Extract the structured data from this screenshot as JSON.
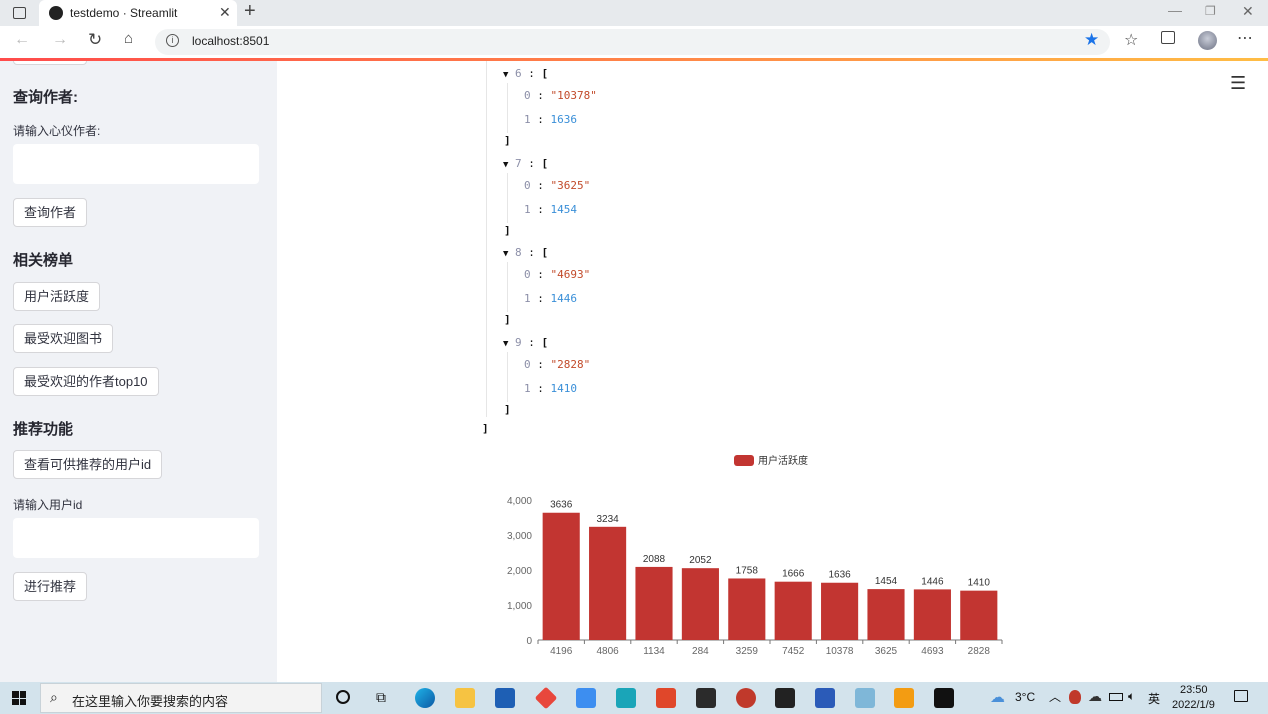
{
  "browser": {
    "tab_title": "testdemo · Streamlit",
    "url": "localhost:8501"
  },
  "sidebar": {
    "author_heading": "查询作者:",
    "author_input_label": "请输入心仪作者:",
    "author_button": "查询作者",
    "ranking_heading": "相关榜单",
    "btn_activity": "用户活跃度",
    "btn_popular_books": "最受欢迎图书",
    "btn_popular_authors": "最受欢迎的作者top10",
    "recommend_heading": "推荐功能",
    "btn_view_ids": "查看可供推荐的用户id",
    "user_id_label": "请输入用户id",
    "btn_recommend": "进行推荐"
  },
  "json_view": {
    "items": [
      {
        "index": "6",
        "id": "\"10378\"",
        "count": "1636"
      },
      {
        "index": "7",
        "id": "\"3625\"",
        "count": "1454"
      },
      {
        "index": "8",
        "id": "\"4693\"",
        "count": "1446"
      },
      {
        "index": "9",
        "id": "\"2828\"",
        "count": "1410"
      }
    ]
  },
  "chart_data": {
    "type": "bar",
    "legend": "用户活跃度",
    "legend_color": "#c23531",
    "categories": [
      "4196",
      "4806",
      "1134",
      "284",
      "3259",
      "7452",
      "10378",
      "3625",
      "4693",
      "2828"
    ],
    "values": [
      3636,
      3234,
      2088,
      2052,
      1758,
      1666,
      1636,
      1454,
      1446,
      1410
    ],
    "y_ticks": [
      "0",
      "1,000",
      "2,000",
      "3,000",
      "4,000"
    ],
    "ylim": [
      0,
      4000
    ],
    "bar_color": "#c23531"
  },
  "taskbar": {
    "search_placeholder": "在这里输入你要搜索的内容",
    "weather": "3°C",
    "ime": "英",
    "time": "23:50",
    "date": "2022/1/9"
  }
}
